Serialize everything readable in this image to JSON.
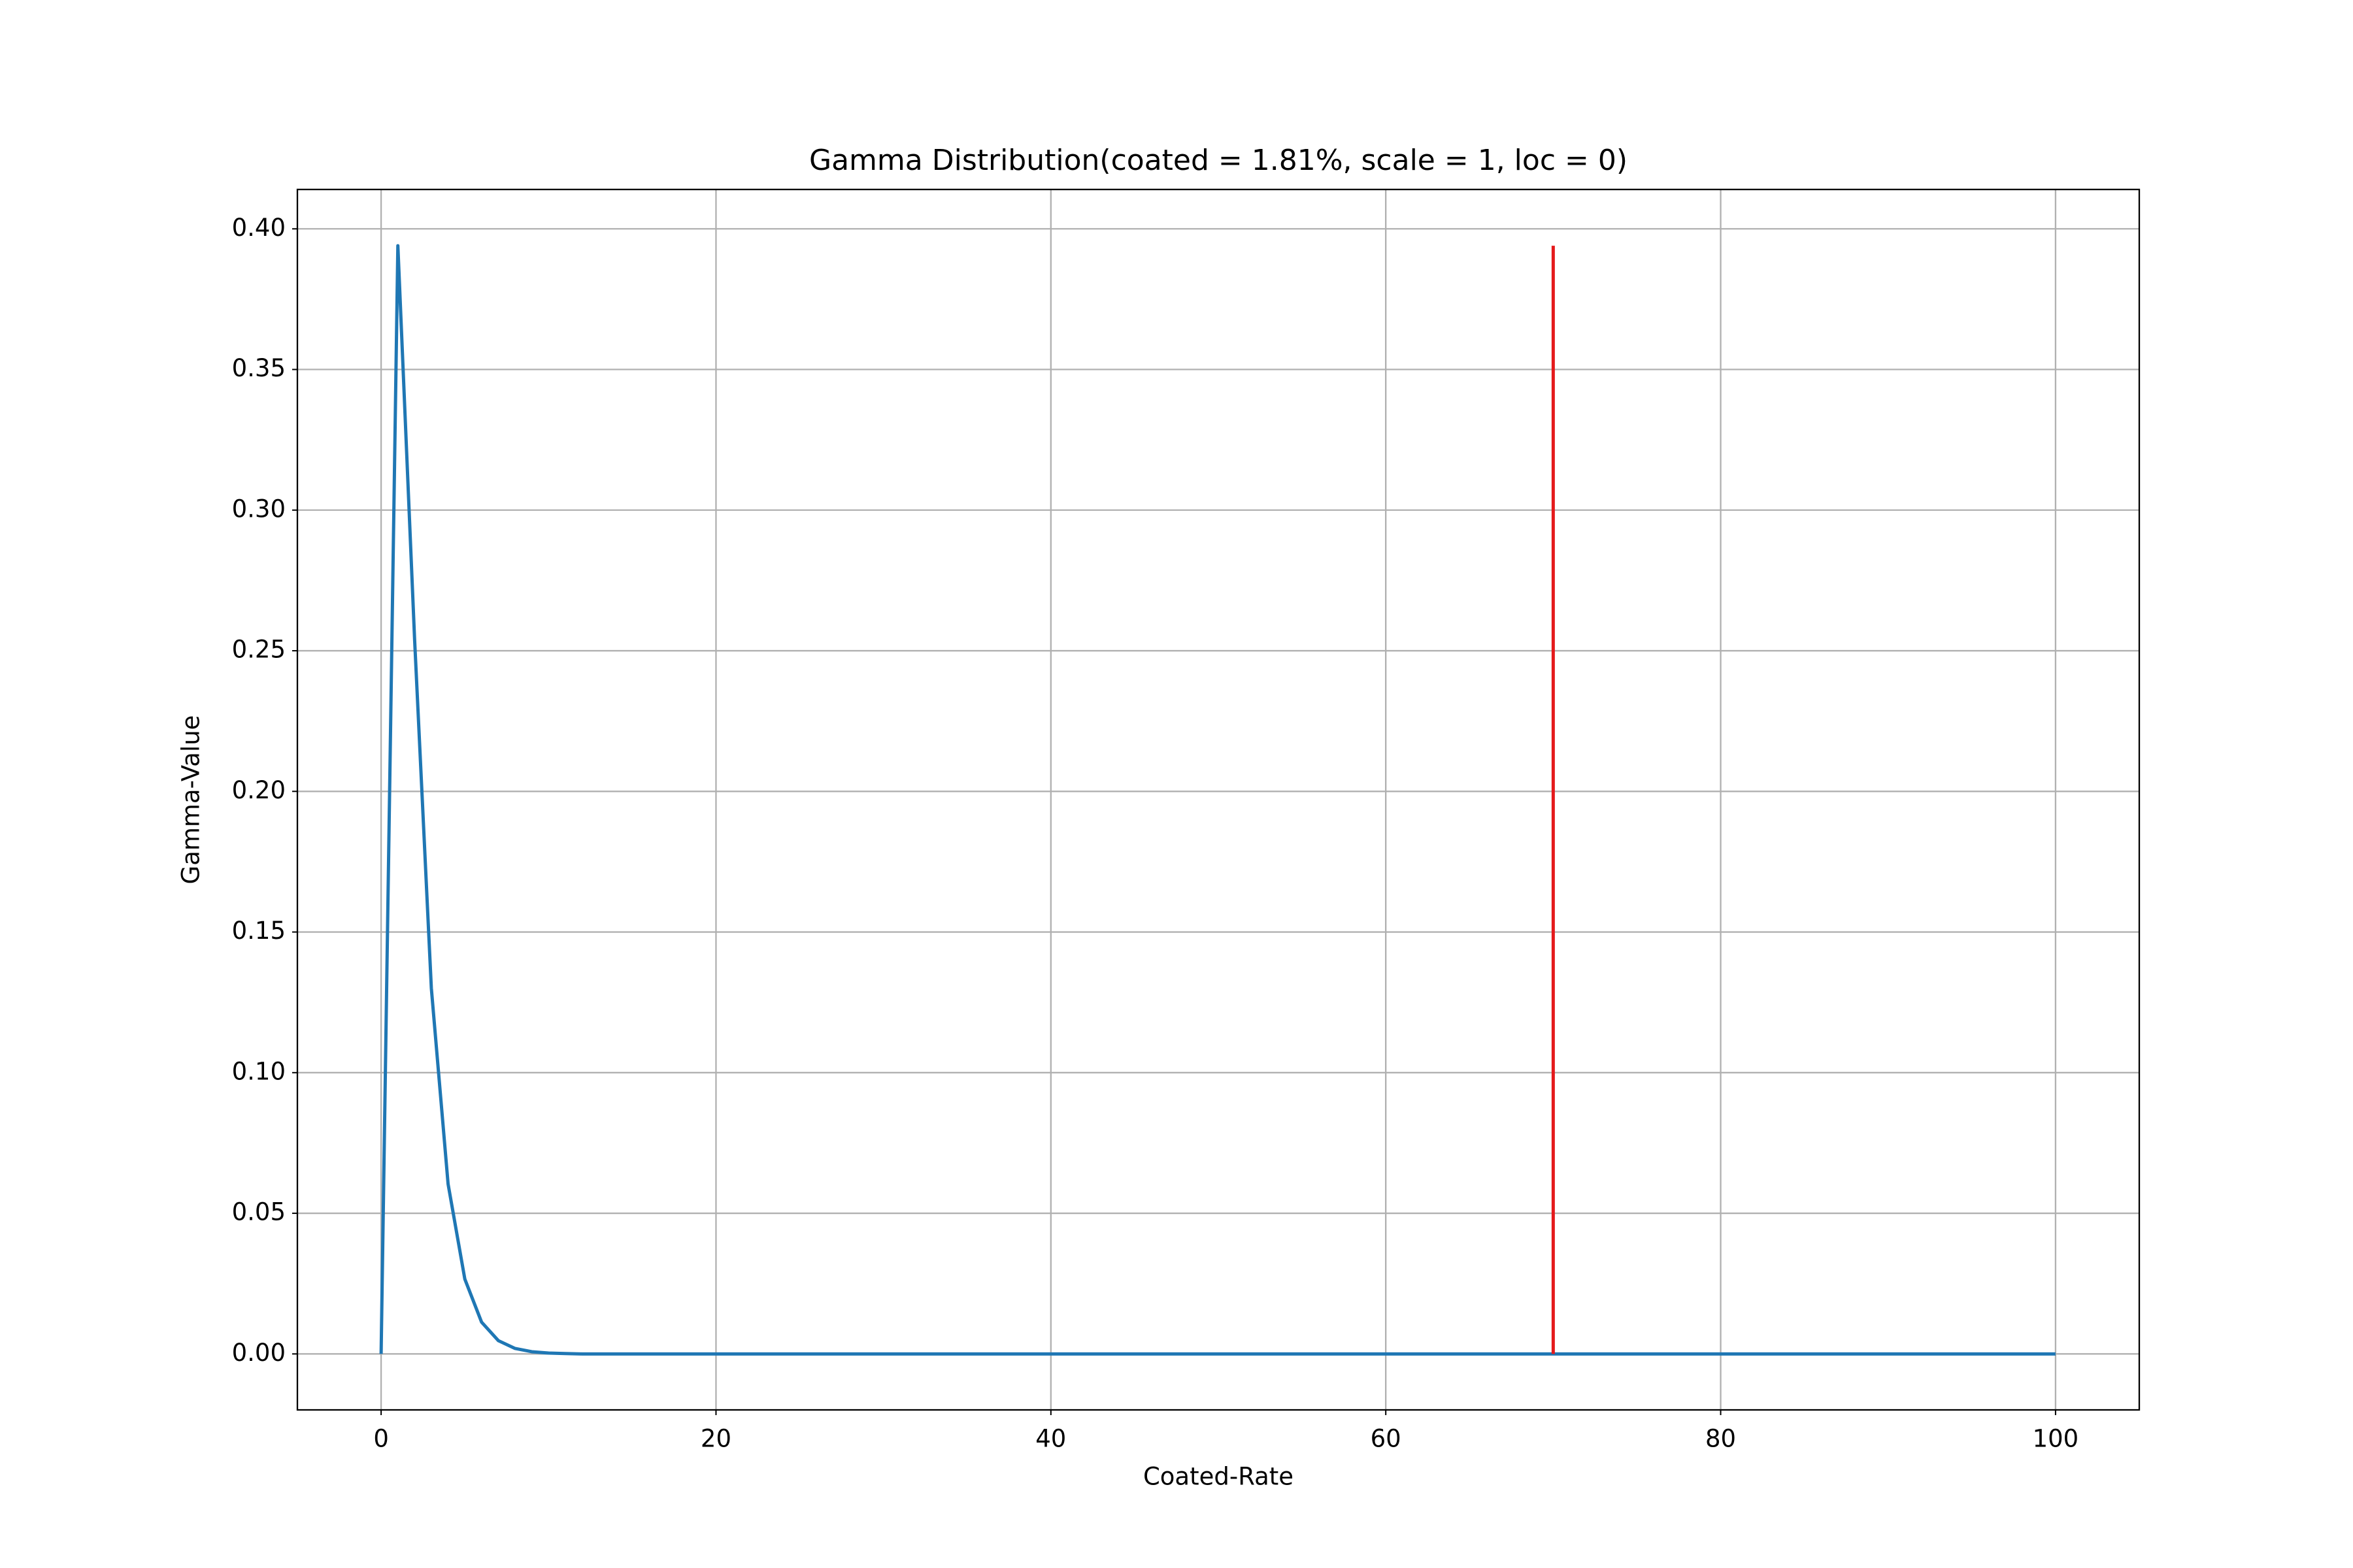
{
  "chart_data": {
    "type": "line",
    "title": "Gamma Distribution(coated = 1.81%, scale = 1, loc = 0)",
    "x_label": "Coated-Rate",
    "y_label": "Gamma-Value",
    "series": [
      {
        "color": "#1f77b4",
        "x": [
          0,
          1,
          2,
          3,
          4,
          5,
          6,
          7,
          8,
          9,
          10,
          11,
          12,
          13,
          14,
          15,
          16,
          17,
          18,
          19,
          20,
          21,
          22,
          23,
          24,
          25,
          26,
          27,
          28,
          29,
          30,
          31,
          32,
          33,
          34,
          35,
          36,
          37,
          38,
          39,
          40,
          41,
          42,
          43,
          44,
          45,
          46,
          47,
          48,
          49,
          50,
          51,
          52,
          53,
          54,
          55,
          56,
          57,
          58,
          59,
          60,
          61,
          62,
          63,
          64,
          65,
          66,
          67,
          68,
          69,
          70,
          71,
          72,
          73,
          74,
          75,
          76,
          77,
          78,
          79,
          80,
          81,
          82,
          83,
          84,
          85,
          86,
          87,
          88,
          89,
          90,
          91,
          92,
          93,
          94,
          95,
          96,
          97,
          98,
          99,
          100
        ],
        "values": [
          0,
          0.394,
          0.254,
          0.13,
          0.0604,
          0.0266,
          0.0113,
          0.00473,
          0.00194,
          0.000785,
          0.000314,
          0.000125,
          0,
          0,
          0,
          0,
          0,
          0,
          0,
          0,
          0,
          0,
          0,
          0,
          0,
          0,
          0,
          0,
          0,
          0,
          0,
          0,
          0,
          0,
          0,
          0,
          0,
          0,
          0,
          0,
          0,
          0,
          0,
          0,
          0,
          0,
          0,
          0,
          0,
          0,
          0,
          0,
          0,
          0,
          0,
          0,
          0,
          0,
          0,
          0,
          0,
          0,
          0,
          0,
          0,
          0,
          0,
          0,
          0,
          0,
          0,
          0,
          0,
          0,
          0,
          0,
          0,
          0,
          0,
          0,
          0,
          0,
          0,
          0,
          0,
          0,
          0,
          0,
          0,
          0,
          0,
          0,
          0,
          0,
          0,
          0,
          0,
          0,
          0,
          0,
          0
        ]
      },
      {
        "color": "#e41a1c",
        "x": [
          70,
          70
        ],
        "values": [
          0,
          0.394
        ]
      }
    ],
    "xlim": [
      -5,
      105
    ],
    "ylim": [
      -0.0199,
      0.414
    ],
    "xticks": [
      0,
      20,
      40,
      60,
      80,
      100
    ],
    "yticks": [
      {
        "value": 0,
        "label": "0.00"
      },
      {
        "value": 0.05,
        "label": "0.05"
      },
      {
        "value": 0.1,
        "label": "0.10"
      },
      {
        "value": 0.15,
        "label": "0.15"
      },
      {
        "value": 0.2,
        "label": "0.20"
      },
      {
        "value": 0.25,
        "label": "0.25"
      },
      {
        "value": 0.3,
        "label": "0.30"
      },
      {
        "value": 0.35,
        "label": "0.35"
      },
      {
        "value": 0.4,
        "label": "0.40"
      }
    ],
    "grid": true
  }
}
